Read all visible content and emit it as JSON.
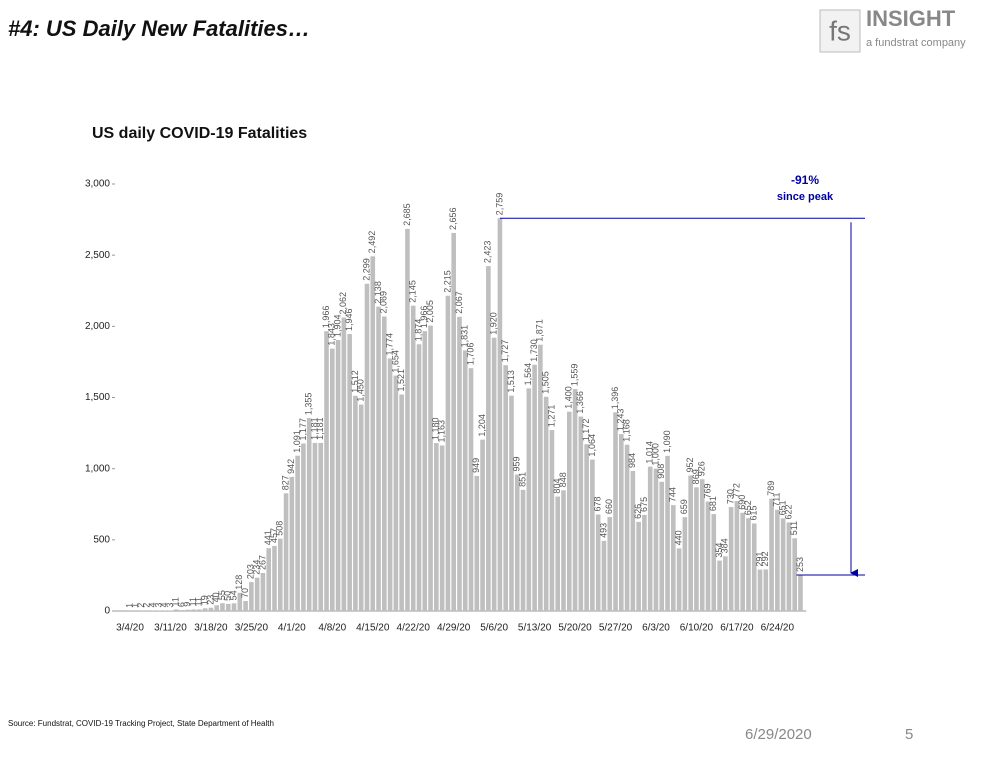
{
  "header": {
    "title": "#4: US Daily New Fatalities…"
  },
  "logo": {
    "mark": "fs",
    "name": "INSIGHT",
    "tagline": "a fundstrat company"
  },
  "chart_data": {
    "type": "bar",
    "title": "US daily COVID-19 Fatalities",
    "color": "#bfbfbf",
    "categories": [
      "3/4/20",
      null,
      null,
      null,
      null,
      null,
      null,
      "3/11/20",
      null,
      null,
      null,
      null,
      null,
      null,
      "3/18/20",
      null,
      null,
      null,
      null,
      null,
      null,
      "3/25/20",
      null,
      null,
      null,
      null,
      null,
      null,
      "4/1/20",
      null,
      null,
      null,
      null,
      null,
      null,
      "4/8/20",
      null,
      null,
      null,
      null,
      null,
      null,
      "4/15/20",
      null,
      null,
      null,
      null,
      null,
      null,
      "4/22/20",
      null,
      null,
      null,
      null,
      null,
      null,
      "4/29/20",
      null,
      null,
      null,
      null,
      null,
      null,
      "5/6/20",
      null,
      null,
      null,
      null,
      null,
      null,
      "5/13/20",
      null,
      null,
      null,
      null,
      null,
      null,
      "5/20/20",
      null,
      null,
      null,
      null,
      null,
      null,
      "5/27/20",
      null,
      null,
      null,
      null,
      null,
      null,
      "6/3/20",
      null,
      null,
      null,
      null,
      null,
      null,
      "6/10/20",
      null,
      null,
      null,
      null,
      null,
      null,
      "6/17/20",
      null,
      null,
      null,
      null,
      null,
      null,
      "6/24/20",
      null,
      null,
      null,
      null
    ],
    "values": [
      1,
      1,
      2,
      2,
      4,
      3,
      4,
      3,
      11,
      6,
      9,
      11,
      11,
      19,
      23,
      40,
      55,
      50,
      54,
      128,
      70,
      203,
      234,
      267,
      441,
      457,
      508,
      827,
      942,
      1091,
      1177,
      1355,
      1181,
      1181,
      1966,
      1843,
      1904,
      2062,
      1946,
      1512,
      1450,
      2299,
      2492,
      2138,
      2069,
      1774,
      1654,
      1521,
      2685,
      2145,
      1874,
      1966,
      2005,
      1180,
      1163,
      2215,
      2656,
      2067,
      1831,
      1706,
      949,
      1204,
      2423,
      1920,
      2759,
      1727,
      1513,
      959,
      851,
      1564,
      1730,
      1871,
      1505,
      1271,
      804,
      848,
      1400,
      1559,
      1366,
      1172,
      1064,
      678,
      493,
      660,
      1396,
      1243,
      1168,
      984,
      626,
      675,
      1014,
      1000,
      908,
      1090,
      744,
      440,
      659,
      952,
      869,
      926,
      769,
      681,
      354,
      384,
      730,
      772,
      690,
      652,
      615,
      291,
      292,
      789,
      711,
      651,
      622,
      511,
      253
    ],
    "value_labels": [
      "1",
      "1",
      "2",
      "2",
      "4",
      "3",
      "4",
      "3",
      "11",
      "6",
      "9",
      "11",
      "11",
      "19",
      "23",
      "40",
      "55",
      "50",
      "54",
      "128",
      "70",
      "203",
      "234",
      "267",
      "441",
      "457",
      "508",
      "827",
      "942",
      "1,091",
      "1,177",
      "1,355",
      "1,181",
      "1,181",
      "1,966",
      "1,843",
      "1,904",
      "2,062",
      "1,946",
      "1,512",
      "1,450",
      "2,299",
      "2,492",
      "2,138",
      "2,069",
      "1,774",
      "1,654",
      "1,521",
      "2,685",
      "2,145",
      "1,874",
      "1,966",
      "2,005",
      "1,180",
      "1,163",
      "2,215",
      "2,656",
      "2,067",
      "1,831",
      "1,706",
      "949",
      "1,204",
      "2,423",
      "1,920",
      "2,759",
      "1,727",
      "1,513",
      "959",
      "851",
      "1,564",
      "1,730",
      "1,871",
      "1,505",
      "1,271",
      "804",
      "848",
      "1,400",
      "1,559",
      "1,366",
      "1,172",
      "1,064",
      "678",
      "493",
      "660",
      "1,396",
      "1,243",
      "1,168",
      "984",
      "626",
      "675",
      "1,014",
      "1,000",
      "908",
      "1,090",
      "744",
      "440",
      "659",
      "952",
      "869",
      "926",
      "769",
      "681",
      "354",
      "384",
      "730",
      "772",
      "690",
      "652",
      "615",
      "291",
      "292",
      "789",
      "711",
      "651",
      "622",
      "511",
      "253"
    ],
    "ylim": [
      0,
      3000
    ],
    "yticks": [
      0,
      {
        "value": 500,
        "label": "500"
      },
      {
        "value": 1000,
        "label": "1,000"
      },
      {
        "value": 1500,
        "label": "1,500"
      },
      {
        "value": 2000,
        "label": "2,000"
      },
      {
        "value": 2500,
        "label": "2,500"
      },
      {
        "value": 3000,
        "label": "3,000"
      }
    ],
    "annotation": {
      "change": "-91%",
      "text": "since peak",
      "color": "#0000a0"
    }
  },
  "footer": {
    "source": "Source: Fundstrat, COVID-19 Tracking Project, State Department of Health",
    "date": "6/29/2020",
    "page": "5"
  }
}
